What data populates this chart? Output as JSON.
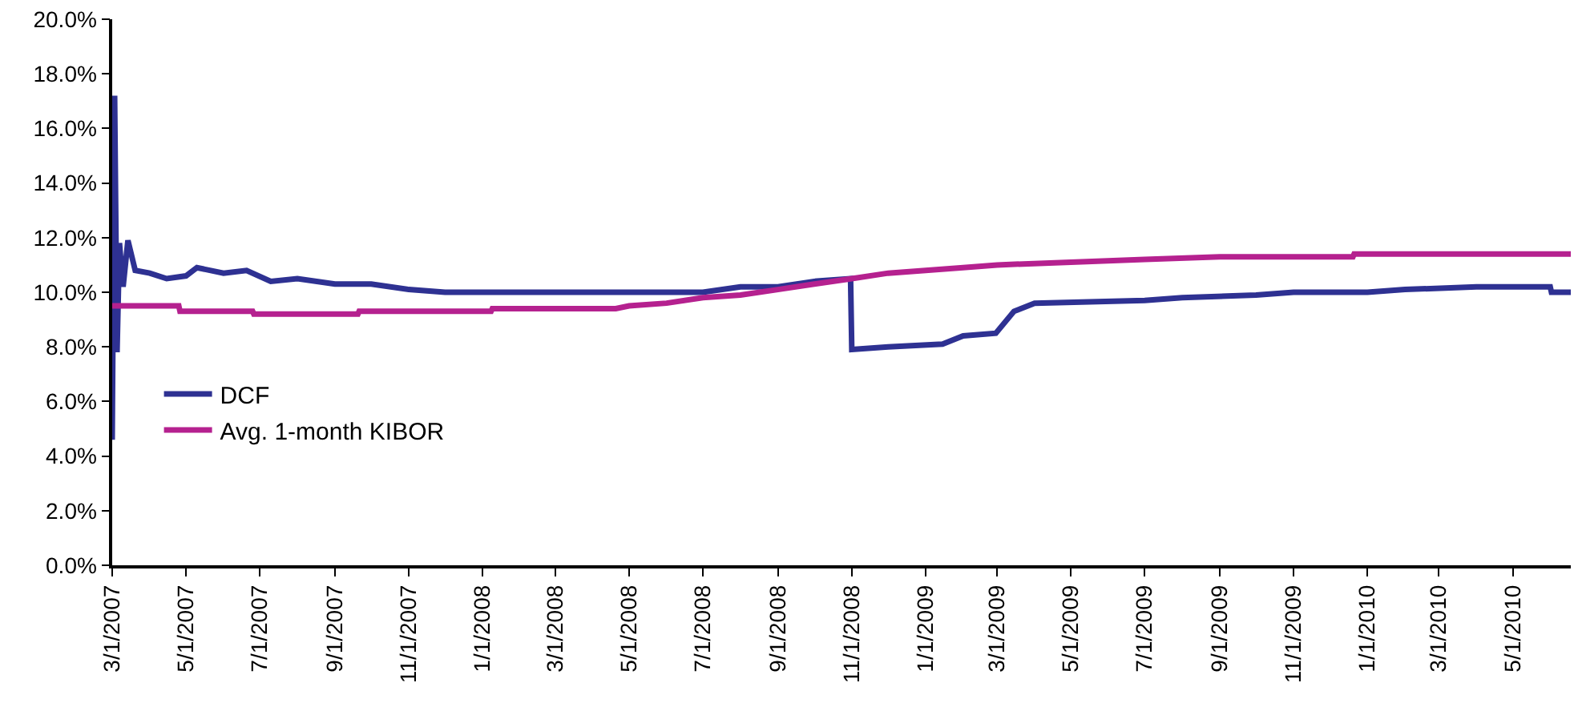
{
  "chart_data": {
    "type": "line",
    "xlim": [
      "2007-03-01",
      "2010-06-18"
    ],
    "xticks": [
      {
        "value": "2007-03-01",
        "label": "3/1/2007"
      },
      {
        "value": "2007-05-01",
        "label": "5/1/2007"
      },
      {
        "value": "2007-07-01",
        "label": "7/1/2007"
      },
      {
        "value": "2007-09-01",
        "label": "9/1/2007"
      },
      {
        "value": "2007-11-01",
        "label": "11/1/2007"
      },
      {
        "value": "2008-01-01",
        "label": "1/1/2008"
      },
      {
        "value": "2008-03-01",
        "label": "3/1/2008"
      },
      {
        "value": "2008-05-01",
        "label": "5/1/2008"
      },
      {
        "value": "2008-07-01",
        "label": "7/1/2008"
      },
      {
        "value": "2008-09-01",
        "label": "9/1/2008"
      },
      {
        "value": "2008-11-01",
        "label": "11/1/2008"
      },
      {
        "value": "2009-01-01",
        "label": "1/1/2009"
      },
      {
        "value": "2009-03-01",
        "label": "3/1/2009"
      },
      {
        "value": "2009-05-01",
        "label": "5/1/2009"
      },
      {
        "value": "2009-07-01",
        "label": "7/1/2009"
      },
      {
        "value": "2009-09-01",
        "label": "9/1/2009"
      },
      {
        "value": "2009-11-01",
        "label": "11/1/2009"
      },
      {
        "value": "2010-01-01",
        "label": "1/1/2010"
      },
      {
        "value": "2010-03-01",
        "label": "3/1/2010"
      },
      {
        "value": "2010-05-01",
        "label": "5/1/2010"
      }
    ],
    "ylim": [
      0,
      20
    ],
    "yticks": [
      {
        "value": 0,
        "label": "0.0%"
      },
      {
        "value": 2,
        "label": "2.0%"
      },
      {
        "value": 4,
        "label": "4.0%"
      },
      {
        "value": 6,
        "label": "6.0%"
      },
      {
        "value": 8,
        "label": "8.0%"
      },
      {
        "value": 10,
        "label": "10.0%"
      },
      {
        "value": 12,
        "label": "12.0%"
      },
      {
        "value": 14,
        "label": "14.0%"
      },
      {
        "value": 16,
        "label": "16.0%"
      },
      {
        "value": 18,
        "label": "18.0%"
      },
      {
        "value": 20,
        "label": "20.0%"
      }
    ],
    "legend": "bottom left",
    "line_style": "solid",
    "series": [
      {
        "name": "DCF",
        "color": "#2e3192",
        "x": [
          "2007-03-01",
          "2007-03-03",
          "2007-03-05",
          "2007-03-07",
          "2007-03-10",
          "2007-03-14",
          "2007-03-20",
          "2007-04-01",
          "2007-04-15",
          "2007-05-01",
          "2007-05-10",
          "2007-06-01",
          "2007-06-20",
          "2007-07-10",
          "2007-08-01",
          "2007-09-01",
          "2007-10-01",
          "2007-11-01",
          "2007-12-01",
          "2008-03-01",
          "2008-04-20",
          "2008-05-01",
          "2008-07-01",
          "2008-08-01",
          "2008-09-01",
          "2008-10-01",
          "2008-10-31",
          "2008-11-01",
          "2008-12-01",
          "2009-01-15",
          "2009-02-01",
          "2009-02-28",
          "2009-03-15",
          "2009-04-01",
          "2009-07-01",
          "2009-08-01",
          "2009-10-01",
          "2009-11-01",
          "2010-01-01",
          "2010-02-01",
          "2010-04-01",
          "2010-06-01",
          "2010-06-02",
          "2010-06-18"
        ],
        "values": [
          4.6,
          17.2,
          7.8,
          11.8,
          10.2,
          11.9,
          10.8,
          10.7,
          10.5,
          10.6,
          10.9,
          10.7,
          10.8,
          10.4,
          10.5,
          10.3,
          10.3,
          10.1,
          10.0,
          10.0,
          10.0,
          10.0,
          10.0,
          10.2,
          10.2,
          10.4,
          10.5,
          7.9,
          8.0,
          8.1,
          8.4,
          8.5,
          9.3,
          9.6,
          9.7,
          9.8,
          9.9,
          10.0,
          10.0,
          10.1,
          10.2,
          10.2,
          10.0,
          10.0
        ]
      },
      {
        "name": "Avg. 1-month KIBOR",
        "color": "#b5218f",
        "x": [
          "2007-03-01",
          "2007-04-25",
          "2007-04-26",
          "2007-06-25",
          "2007-06-26",
          "2007-09-20",
          "2007-09-21",
          "2008-01-08",
          "2008-01-09",
          "2008-04-20",
          "2008-05-01",
          "2008-06-01",
          "2008-07-01",
          "2008-08-01",
          "2008-09-01",
          "2008-10-01",
          "2008-11-01",
          "2008-12-01",
          "2009-01-01",
          "2009-02-01",
          "2009-03-01",
          "2009-05-01",
          "2009-07-01",
          "2009-09-01",
          "2009-12-20",
          "2009-12-21",
          "2010-06-18"
        ],
        "values": [
          9.5,
          9.5,
          9.3,
          9.3,
          9.2,
          9.2,
          9.3,
          9.3,
          9.4,
          9.4,
          9.5,
          9.6,
          9.8,
          9.9,
          10.1,
          10.3,
          10.5,
          10.7,
          10.8,
          10.9,
          11.0,
          11.1,
          11.2,
          11.3,
          11.3,
          11.4,
          11.4
        ]
      }
    ]
  }
}
